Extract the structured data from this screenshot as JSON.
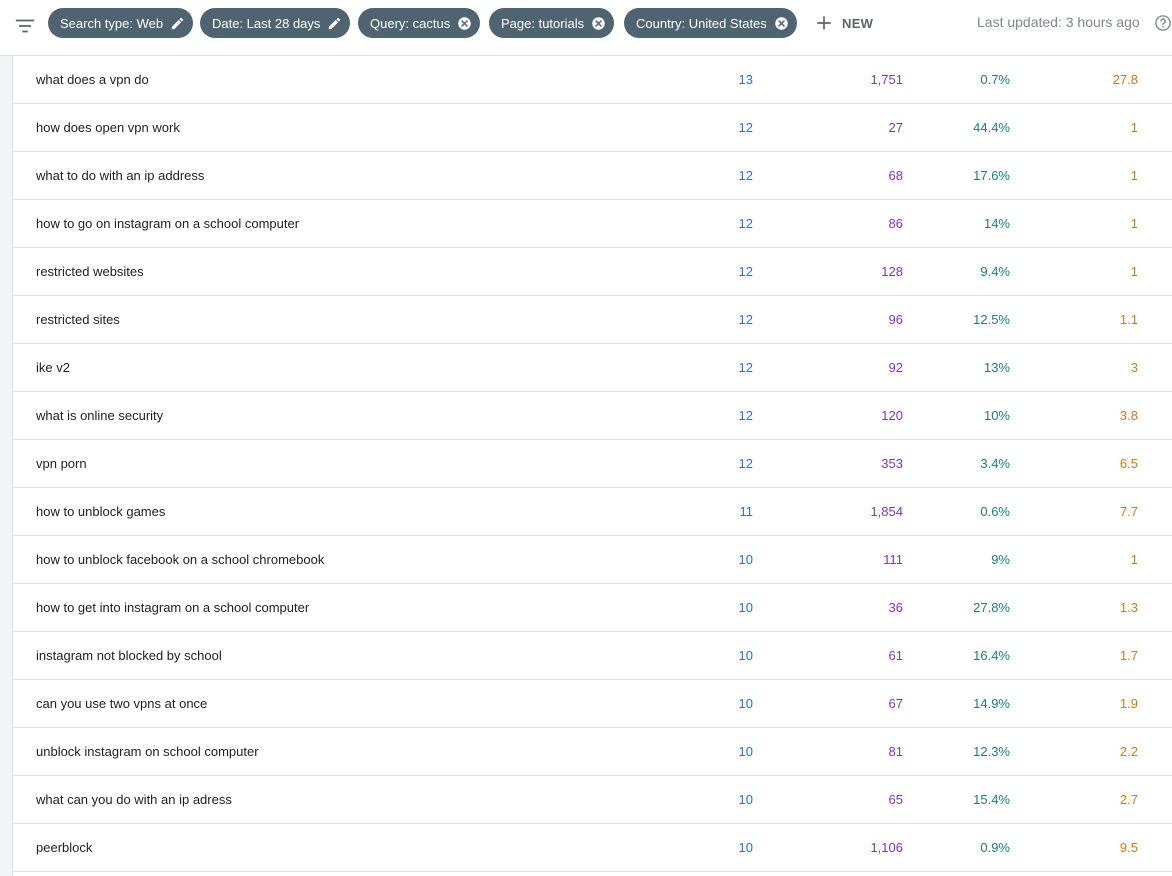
{
  "filters": [
    {
      "label": "Search type: Web",
      "action": "edit"
    },
    {
      "label": "Date: Last 28 days",
      "action": "edit"
    },
    {
      "label": "Query: cactus",
      "action": "remove"
    },
    {
      "label": "Page: tutorials",
      "action": "remove"
    },
    {
      "label": "Country: United States",
      "action": "remove"
    }
  ],
  "new_label": "NEW",
  "last_updated": "Last updated: 3 hours ago",
  "colors": {
    "chip_bg": "#4f6470",
    "clicks": "#1a73e8",
    "impressions": "#8430ce",
    "ctr": "#188078",
    "position": "#e37400"
  },
  "icons": {
    "filter": "filter-icon",
    "edit": "pencil-icon",
    "remove": "close-circle-icon",
    "add": "plus-icon",
    "help": "help-icon"
  },
  "rows": [
    {
      "query": "what does a vpn do",
      "clicks": "13",
      "impressions": "1,751",
      "ctr": "0.7%",
      "position": "27.8"
    },
    {
      "query": "how does open vpn work",
      "clicks": "12",
      "impressions": "27",
      "ctr": "44.4%",
      "position": "1"
    },
    {
      "query": "what to do with an ip address",
      "clicks": "12",
      "impressions": "68",
      "ctr": "17.6%",
      "position": "1"
    },
    {
      "query": "how to go on instagram on a school computer",
      "clicks": "12",
      "impressions": "86",
      "ctr": "14%",
      "position": "1"
    },
    {
      "query": "restricted websites",
      "clicks": "12",
      "impressions": "128",
      "ctr": "9.4%",
      "position": "1"
    },
    {
      "query": "restricted sites",
      "clicks": "12",
      "impressions": "96",
      "ctr": "12.5%",
      "position": "1.1"
    },
    {
      "query": "ike v2",
      "clicks": "12",
      "impressions": "92",
      "ctr": "13%",
      "position": "3"
    },
    {
      "query": "what is online security",
      "clicks": "12",
      "impressions": "120",
      "ctr": "10%",
      "position": "3.8"
    },
    {
      "query": "vpn porn",
      "clicks": "12",
      "impressions": "353",
      "ctr": "3.4%",
      "position": "6.5"
    },
    {
      "query": "how to unblock games",
      "clicks": "11",
      "impressions": "1,854",
      "ctr": "0.6%",
      "position": "7.7"
    },
    {
      "query": "how to unblock facebook on a school chromebook",
      "clicks": "10",
      "impressions": "111",
      "ctr": "9%",
      "position": "1"
    },
    {
      "query": "how to get into instagram on a school computer",
      "clicks": "10",
      "impressions": "36",
      "ctr": "27.8%",
      "position": "1.3"
    },
    {
      "query": "instagram not blocked by school",
      "clicks": "10",
      "impressions": "61",
      "ctr": "16.4%",
      "position": "1.7"
    },
    {
      "query": "can you use two vpns at once",
      "clicks": "10",
      "impressions": "67",
      "ctr": "14.9%",
      "position": "1.9"
    },
    {
      "query": "unblock instagram on school computer",
      "clicks": "10",
      "impressions": "81",
      "ctr": "12.3%",
      "position": "2.2"
    },
    {
      "query": "what can you do with an ip adress",
      "clicks": "10",
      "impressions": "65",
      "ctr": "15.4%",
      "position": "2.7"
    },
    {
      "query": "peerblock",
      "clicks": "10",
      "impressions": "1,106",
      "ctr": "0.9%",
      "position": "9.5"
    }
  ]
}
